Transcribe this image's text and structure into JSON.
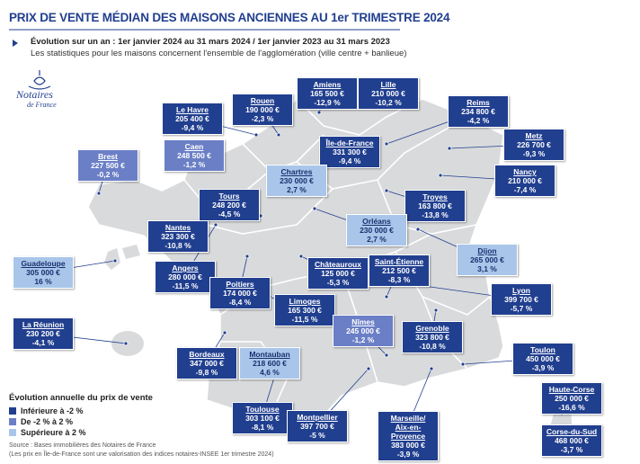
{
  "header": {
    "title": "PRIX DE VENTE MÉDIAN DES MAISONS ANCIENNES AU 1er TRIMESTRE 2024",
    "subtitle": "Évolution sur un an : 1er janvier 2024 au 31 mars 2024 / 1er janvier 2023 au 31 mars 2023",
    "note": "Les statistiques pour les maisons concernent l'ensemble de l'agglomération (ville centre + banlieue)"
  },
  "logo": {
    "name": "Notaires",
    "sub": "de France"
  },
  "cities": [
    {
      "name": "Amiens",
      "price": "165 500 €",
      "change": "-12,9 %",
      "color": "#213f8f"
    },
    {
      "name": "Lille",
      "price": "210 000 €",
      "change": "-10,2 %",
      "color": "#213f8f"
    },
    {
      "name": "Rouen",
      "price": "190 000 €",
      "change": "-2,3 %",
      "color": "#213f8f"
    },
    {
      "name": "Le Havre",
      "price": "205 400 €",
      "change": "-9,4 %",
      "color": "#213f8f"
    },
    {
      "name": "Reims",
      "price": "234 800 €",
      "change": "-4,2 %",
      "color": "#213f8f"
    },
    {
      "name": "Caen",
      "price": "248 500 €",
      "change": "-1,2 %",
      "color": "#6b7fc6"
    },
    {
      "name": "Île-de-France",
      "price": "331 300 €",
      "change": "-9,4 %",
      "color": "#213f8f"
    },
    {
      "name": "Metz",
      "price": "226 700 €",
      "change": "-9,3 %",
      "color": "#213f8f"
    },
    {
      "name": "Brest",
      "price": "227 500 €",
      "change": "-0,2 %",
      "color": "#6b7fc6"
    },
    {
      "name": "Chartres",
      "price": "230 000 €",
      "change": "2,7 %",
      "color": "#a9c6ea"
    },
    {
      "name": "Nancy",
      "price": "210 000 €",
      "change": "-7,4 %",
      "color": "#213f8f"
    },
    {
      "name": "Tours",
      "price": "248 200 €",
      "change": "-4,5 %",
      "color": "#213f8f"
    },
    {
      "name": "Troyes",
      "price": "163 800 €",
      "change": "-13,8 %",
      "color": "#213f8f"
    },
    {
      "name": "Orléans",
      "price": "230 000 €",
      "change": "2,7 %",
      "color": "#a9c6ea"
    },
    {
      "name": "Nantes",
      "price": "323 300 €",
      "change": "-10,8 %",
      "color": "#213f8f"
    },
    {
      "name": "Dijon",
      "price": "265 000 €",
      "change": "3,1 %",
      "color": "#a9c6ea"
    },
    {
      "name": "Guadeloupe",
      "price": "305 000 €",
      "change": "16 %",
      "color": "#a9c6ea"
    },
    {
      "name": "Angers",
      "price": "280 000 €",
      "change": "-11,5 %",
      "color": "#213f8f"
    },
    {
      "name": "Châteauroux",
      "price": "125 000 €",
      "change": "-5,3 %",
      "color": "#213f8f"
    },
    {
      "name": "Saint-Étienne",
      "price": "212 500 €",
      "change": "-8,3 %",
      "color": "#213f8f"
    },
    {
      "name": "Poitiers",
      "price": "174 000 €",
      "change": "-8,4 %",
      "color": "#213f8f"
    },
    {
      "name": "Lyon",
      "price": "399 700 €",
      "change": "-5,7 %",
      "color": "#213f8f"
    },
    {
      "name": "Limoges",
      "price": "165 300 €",
      "change": "-11,5 %",
      "color": "#213f8f"
    },
    {
      "name": "Nîmes",
      "price": "245 000 €",
      "change": "-1,2 %",
      "color": "#6b7fc6"
    },
    {
      "name": "La Réunion",
      "price": "230 200 €",
      "change": "-4,1 %",
      "color": "#213f8f"
    },
    {
      "name": "Grenoble",
      "price": "323 800 €",
      "change": "-10,8 %",
      "color": "#213f8f"
    },
    {
      "name": "Toulon",
      "price": "450 000 €",
      "change": "-3,9 %",
      "color": "#213f8f"
    },
    {
      "name": "Bordeaux",
      "price": "347 000 €",
      "change": "-9,8 %",
      "color": "#213f8f"
    },
    {
      "name": "Montauban",
      "price": "218 600 €",
      "change": "4,6 %",
      "color": "#a9c6ea"
    },
    {
      "name": "Haute-Corse",
      "price": "250 000 €",
      "change": "-16,6 %",
      "color": "#213f8f"
    },
    {
      "name": "Toulouse",
      "price": "303 100 €",
      "change": "-8,1 %",
      "color": "#213f8f"
    },
    {
      "name": "Montpellier",
      "price": "397 700 €",
      "change": "-5 %",
      "color": "#213f8f"
    },
    {
      "name": "Marseille/\nAix-en-Provence",
      "price": "383 000 €",
      "change": "-3,9 %",
      "color": "#213f8f"
    },
    {
      "name": "Corse-du-Sud",
      "price": "468 000 €",
      "change": "-3,7 %",
      "color": "#213f8f"
    }
  ],
  "legend": {
    "title": "Évolution annuelle du prix de vente",
    "items": [
      {
        "label": "Inférieure à -2 %",
        "color": "#213f8f"
      },
      {
        "label": "De -2 % à 2 %",
        "color": "#6b7fc6"
      },
      {
        "label": "Supérieure à 2 %",
        "color": "#a9c6ea"
      }
    ]
  },
  "source": {
    "line1": "Source : Bases immobilières des Notaires de France",
    "line2": "(Les prix en Île-de-France sont une valorisation des indices notaires-INSEE 1er trimestre 2024)"
  }
}
